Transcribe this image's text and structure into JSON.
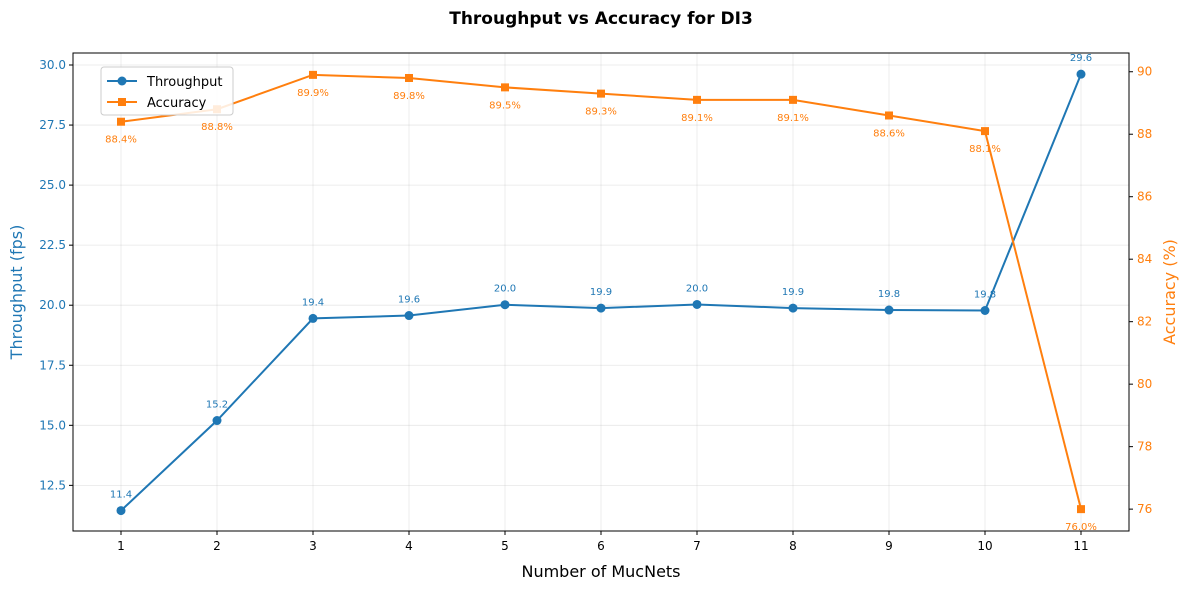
{
  "chart_data": {
    "type": "line",
    "title": "Throughput vs Accuracy for DI3",
    "xlabel": "Number of MucNets",
    "ylabel_left": "Throughput (fps)",
    "ylabel_right": "Accuracy (%)",
    "x": [
      1,
      2,
      3,
      4,
      5,
      6,
      7,
      8,
      9,
      10,
      11
    ],
    "x_tick_labels": [
      "1",
      "2",
      "3",
      "4",
      "5",
      "6",
      "7",
      "8",
      "9",
      "10",
      "11"
    ],
    "xlim": [
      0.5,
      11.5
    ],
    "ylim_left": [
      10.6,
      30.5
    ],
    "ylim_right": [
      75.3,
      90.6
    ],
    "y_ticks_left": [
      12.5,
      15.0,
      17.5,
      20.0,
      22.5,
      25.0,
      27.5,
      30.0
    ],
    "y_tick_labels_left": [
      "12.5",
      "15.0",
      "17.5",
      "20.0",
      "22.5",
      "25.0",
      "27.5",
      "30.0"
    ],
    "y_ticks_right": [
      76,
      78,
      80,
      82,
      84,
      86,
      88,
      90
    ],
    "y_tick_labels_right": [
      "76",
      "78",
      "80",
      "82",
      "84",
      "86",
      "88",
      "90"
    ],
    "grid": true,
    "legend_position": "top-left",
    "colors": {
      "throughput": "#1f77b4",
      "accuracy": "#ff7f0e"
    },
    "series": [
      {
        "name": "Throughput",
        "axis": "left",
        "marker": "circle",
        "values": [
          11.45,
          15.2,
          19.45,
          19.57,
          20.02,
          19.88,
          20.03,
          19.88,
          19.8,
          19.78,
          29.62
        ],
        "labels": [
          "11.4",
          "15.2",
          "19.4",
          "19.6",
          "20.0",
          "19.9",
          "20.0",
          "19.9",
          "19.8",
          "19.8",
          "29.6"
        ]
      },
      {
        "name": "Accuracy",
        "axis": "right",
        "marker": "square",
        "values": [
          88.4,
          88.8,
          89.9,
          89.8,
          89.5,
          89.3,
          89.1,
          89.1,
          88.6,
          88.1,
          76.0
        ],
        "labels": [
          "88.4%",
          "88.8%",
          "89.9%",
          "89.8%",
          "89.5%",
          "89.3%",
          "89.1%",
          "89.1%",
          "88.6%",
          "88.1%",
          "76.0%"
        ]
      }
    ]
  }
}
